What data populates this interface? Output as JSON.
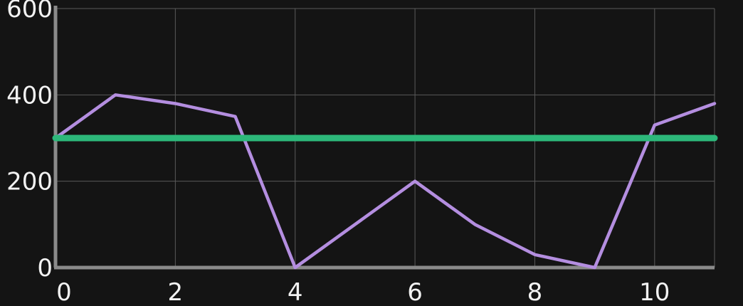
{
  "chart_data": {
    "type": "line",
    "title": "",
    "xlabel": "",
    "ylabel": "",
    "xlim": [
      0,
      11
    ],
    "ylim": [
      0,
      600
    ],
    "grid": true,
    "legend": "none",
    "x_ticks": [
      0,
      2,
      4,
      6,
      8,
      10
    ],
    "x_tick_labels": [
      "0",
      "2",
      "4",
      "6",
      "8",
      "10"
    ],
    "y_ticks": [
      0,
      200,
      400,
      600
    ],
    "y_tick_labels": [
      "0",
      "200",
      "400",
      "600"
    ],
    "series": [
      {
        "color": "#b48ee0",
        "x": [
          0,
          1,
          2,
          3,
          4,
          5,
          6,
          7,
          8,
          9,
          10,
          11
        ],
        "y": [
          300,
          400,
          380,
          350,
          0,
          100,
          200,
          100,
          30,
          0,
          330,
          380
        ]
      },
      {
        "color": "#2db87a",
        "x": [
          0,
          11
        ],
        "y": [
          300,
          300
        ]
      }
    ]
  },
  "colors": {
    "background": "#141414",
    "grid": "#5a5a5a",
    "axis": "#8a8a8a",
    "text": "#f2f2f2"
  }
}
